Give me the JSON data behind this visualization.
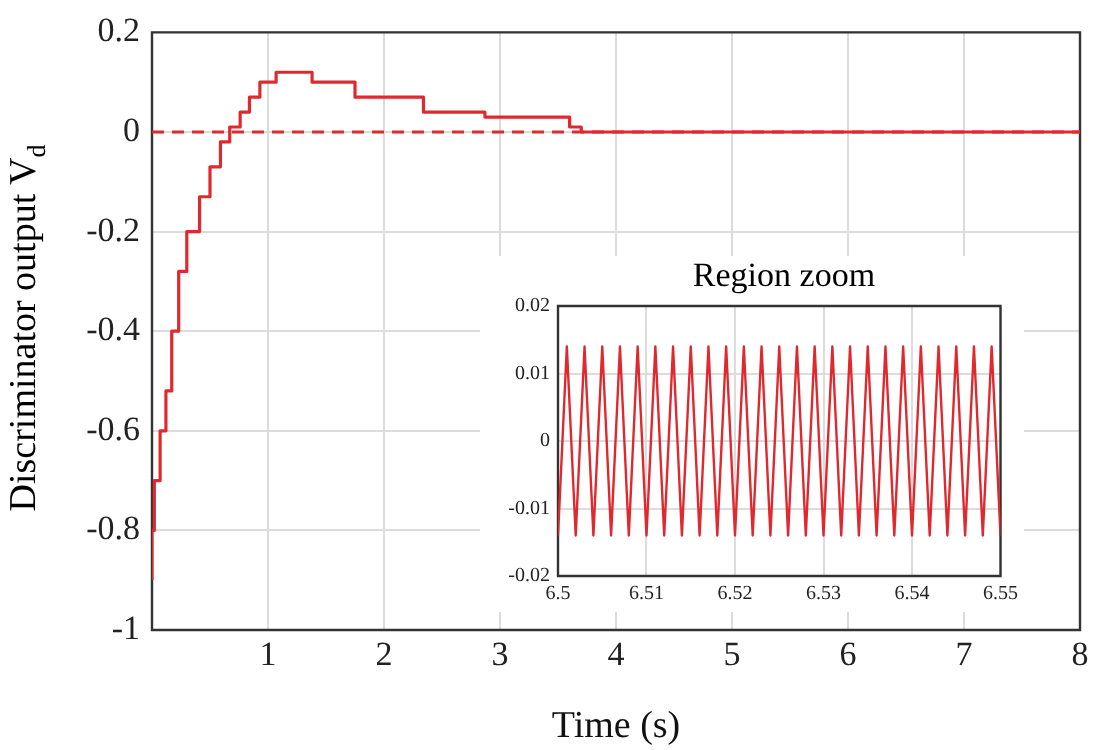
{
  "chart_data": [
    {
      "type": "step",
      "xlabel": "Time (s)",
      "ylabel": "Discriminator output V$_{d}$",
      "series": [
        {
          "color": "#e0292e",
          "x": [
            0,
            0.02,
            0.07,
            0.12,
            0.17,
            0.23,
            0.3,
            0.41,
            0.5,
            0.59,
            0.67,
            0.76,
            0.84,
            0.93,
            1.07,
            1.38,
            1.75,
            2.34,
            2.87,
            3.6,
            3.7,
            5.41,
            8
          ],
          "values": [
            -0.9,
            -0.8,
            -0.7,
            -0.6,
            -0.52,
            -0.4,
            -0.28,
            -0.2,
            -0.13,
            -0.07,
            -0.02,
            0.01,
            0.04,
            0.07,
            0.1,
            0.12,
            0.1,
            0.07,
            0.04,
            0.03,
            0.01,
            0,
            0
          ]
        }
      ],
      "xlim": [
        0,
        8
      ],
      "xticks": [
        1,
        2,
        3,
        4,
        5,
        6,
        7,
        8
      ],
      "ylim": [
        -1,
        0.2
      ],
      "yticks": [
        -1,
        -0.8,
        -0.6,
        -0.4,
        -0.2,
        0,
        0.2
      ],
      "ref_lines": [
        {
          "axis": "y",
          "value": 0,
          "color": "#e0292e",
          "line_style": "dashed"
        }
      ],
      "grid": true,
      "legend": false
    },
    {
      "type": "line",
      "title": "Region zoom",
      "series": [
        {
          "color": "#e0292e",
          "x": [
            6.5,
            6.501,
            6.502,
            6.503,
            6.504,
            6.505,
            6.506,
            6.507,
            6.508,
            6.509,
            6.51,
            6.511,
            6.512,
            6.513,
            6.514,
            6.515,
            6.516,
            6.517,
            6.518,
            6.519,
            6.52,
            6.521,
            6.522,
            6.523,
            6.524,
            6.525,
            6.526,
            6.527,
            6.528,
            6.529,
            6.53,
            6.531,
            6.532,
            6.533,
            6.534,
            6.535,
            6.536,
            6.537,
            6.538,
            6.539,
            6.54,
            6.541,
            6.542,
            6.543,
            6.544,
            6.545,
            6.546,
            6.547,
            6.548,
            6.549,
            6.55
          ],
          "values": [
            -0.014,
            0.014,
            -0.014,
            0.014,
            -0.014,
            0.014,
            -0.014,
            0.014,
            -0.014,
            0.014,
            -0.014,
            0.014,
            -0.014,
            0.014,
            -0.014,
            0.014,
            -0.014,
            0.014,
            -0.014,
            0.014,
            -0.014,
            0.014,
            -0.014,
            0.014,
            -0.014,
            0.014,
            -0.014,
            0.014,
            -0.014,
            0.014,
            -0.014,
            0.014,
            -0.014,
            0.014,
            -0.014,
            0.014,
            -0.014,
            0.014,
            -0.014,
            0.014,
            -0.014,
            0.014,
            -0.014,
            0.014,
            -0.014,
            0.014,
            -0.014,
            0.014,
            -0.014,
            0.014,
            -0.014
          ]
        }
      ],
      "xlim": [
        6.5,
        6.55
      ],
      "xticks": [
        6.5,
        6.51,
        6.52,
        6.53,
        6.54,
        6.55
      ],
      "ylim": [
        -0.02,
        0.02
      ],
      "yticks": [
        -0.02,
        -0.01,
        0,
        0.01,
        0.02
      ],
      "grid": true,
      "legend": false
    }
  ]
}
